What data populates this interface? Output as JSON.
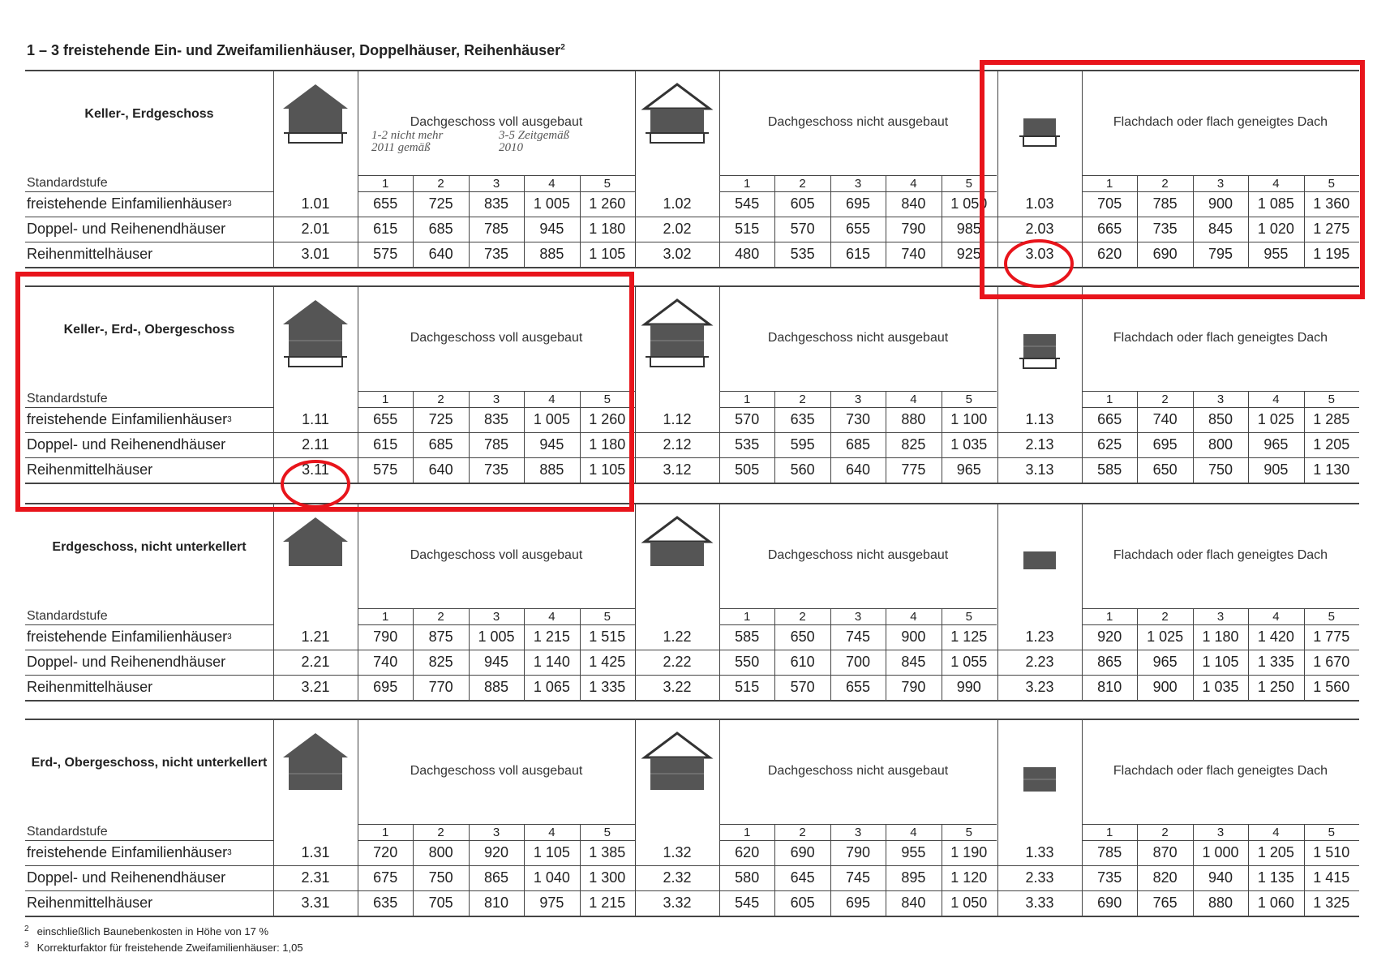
{
  "title": "1 – 3   freistehende Ein- und Zweifamilienhäuser, Doppelhäuser, Reihenhäuser",
  "title_sup": "2",
  "standard_label": "Standardstufe",
  "roof_types": [
    "Dachgeschoss voll ausgebaut",
    "Dachgeschoss nicht ausgebaut",
    "Flachdach oder flach geneigtes Dach"
  ],
  "levels": [
    "1",
    "2",
    "3",
    "4",
    "5"
  ],
  "row_labels": [
    {
      "text": "freistehende Einfamilienhäuser",
      "sup": "3"
    },
    {
      "text": "Doppel- und Reihenendhäuser"
    },
    {
      "text": "Reihenmittelhäuser"
    }
  ],
  "handwriting": [
    "1-2 nicht mehr 2011 gemäß",
    "3-5 Zeitgemäß 2010"
  ],
  "blocks": [
    {
      "heading": "Keller-, Erdgeschoss",
      "rows": [
        [
          {
            "code": "1.01",
            "values": [
              "655",
              "725",
              "835",
              "1 005",
              "1 260"
            ]
          },
          {
            "code": "1.02",
            "values": [
              "545",
              "605",
              "695",
              "840",
              "1 050"
            ]
          },
          {
            "code": "1.03",
            "values": [
              "705",
              "785",
              "900",
              "1 085",
              "1 360"
            ]
          }
        ],
        [
          {
            "code": "2.01",
            "values": [
              "615",
              "685",
              "785",
              "945",
              "1 180"
            ]
          },
          {
            "code": "2.02",
            "values": [
              "515",
              "570",
              "655",
              "790",
              "985"
            ]
          },
          {
            "code": "2.03",
            "values": [
              "665",
              "735",
              "845",
              "1 020",
              "1 275"
            ]
          }
        ],
        [
          {
            "code": "3.01",
            "values": [
              "575",
              "640",
              "735",
              "885",
              "1 105"
            ]
          },
          {
            "code": "3.02",
            "values": [
              "480",
              "535",
              "615",
              "740",
              "925"
            ]
          },
          {
            "code": "3.03",
            "values": [
              "620",
              "690",
              "795",
              "955",
              "1 195"
            ]
          }
        ]
      ]
    },
    {
      "heading": "Keller-, Erd-, Obergeschoss",
      "rows": [
        [
          {
            "code": "1.11",
            "values": [
              "655",
              "725",
              "835",
              "1 005",
              "1 260"
            ]
          },
          {
            "code": "1.12",
            "values": [
              "570",
              "635",
              "730",
              "880",
              "1 100"
            ]
          },
          {
            "code": "1.13",
            "values": [
              "665",
              "740",
              "850",
              "1 025",
              "1 285"
            ]
          }
        ],
        [
          {
            "code": "2.11",
            "values": [
              "615",
              "685",
              "785",
              "945",
              "1 180"
            ]
          },
          {
            "code": "2.12",
            "values": [
              "535",
              "595",
              "685",
              "825",
              "1 035"
            ]
          },
          {
            "code": "2.13",
            "values": [
              "625",
              "695",
              "800",
              "965",
              "1 205"
            ]
          }
        ],
        [
          {
            "code": "3.11",
            "values": [
              "575",
              "640",
              "735",
              "885",
              "1 105"
            ]
          },
          {
            "code": "3.12",
            "values": [
              "505",
              "560",
              "640",
              "775",
              "965"
            ]
          },
          {
            "code": "3.13",
            "values": [
              "585",
              "650",
              "750",
              "905",
              "1 130"
            ]
          }
        ]
      ]
    },
    {
      "heading": "Erdgeschoss, nicht unterkellert",
      "rows": [
        [
          {
            "code": "1.21",
            "values": [
              "790",
              "875",
              "1 005",
              "1 215",
              "1 515"
            ]
          },
          {
            "code": "1.22",
            "values": [
              "585",
              "650",
              "745",
              "900",
              "1 125"
            ]
          },
          {
            "code": "1.23",
            "values": [
              "920",
              "1 025",
              "1 180",
              "1 420",
              "1 775"
            ]
          }
        ],
        [
          {
            "code": "2.21",
            "values": [
              "740",
              "825",
              "945",
              "1 140",
              "1 425"
            ]
          },
          {
            "code": "2.22",
            "values": [
              "550",
              "610",
              "700",
              "845",
              "1 055"
            ]
          },
          {
            "code": "2.23",
            "values": [
              "865",
              "965",
              "1 105",
              "1 335",
              "1 670"
            ]
          }
        ],
        [
          {
            "code": "3.21",
            "values": [
              "695",
              "770",
              "885",
              "1 065",
              "1 335"
            ]
          },
          {
            "code": "3.22",
            "values": [
              "515",
              "570",
              "655",
              "790",
              "990"
            ]
          },
          {
            "code": "3.23",
            "values": [
              "810",
              "900",
              "1 035",
              "1 250",
              "1 560"
            ]
          }
        ]
      ]
    },
    {
      "heading": "Erd-, Obergeschoss, nicht unterkellert",
      "rows": [
        [
          {
            "code": "1.31",
            "values": [
              "720",
              "800",
              "920",
              "1 105",
              "1 385"
            ]
          },
          {
            "code": "1.32",
            "values": [
              "620",
              "690",
              "790",
              "955",
              "1 190"
            ]
          },
          {
            "code": "1.33",
            "values": [
              "785",
              "870",
              "1 000",
              "1 205",
              "1 510"
            ]
          }
        ],
        [
          {
            "code": "2.31",
            "values": [
              "675",
              "750",
              "865",
              "1 040",
              "1 300"
            ]
          },
          {
            "code": "2.32",
            "values": [
              "580",
              "645",
              "745",
              "895",
              "1 120"
            ]
          },
          {
            "code": "2.33",
            "values": [
              "735",
              "820",
              "940",
              "1 135",
              "1 415"
            ]
          }
        ],
        [
          {
            "code": "3.31",
            "values": [
              "635",
              "705",
              "810",
              "975",
              "1 215"
            ]
          },
          {
            "code": "3.32",
            "values": [
              "545",
              "605",
              "695",
              "840",
              "1 050"
            ]
          },
          {
            "code": "3.33",
            "values": [
              "690",
              "765",
              "880",
              "1 060",
              "1 325"
            ]
          }
        ]
      ]
    }
  ],
  "footnotes": [
    {
      "mark": "2",
      "text": "einschließlich Baunebenkosten in Höhe von 17 %"
    },
    {
      "mark": "3",
      "text": "Korrekturfaktor für freistehende Zweifamilienhäuser: 1,05"
    }
  ]
}
